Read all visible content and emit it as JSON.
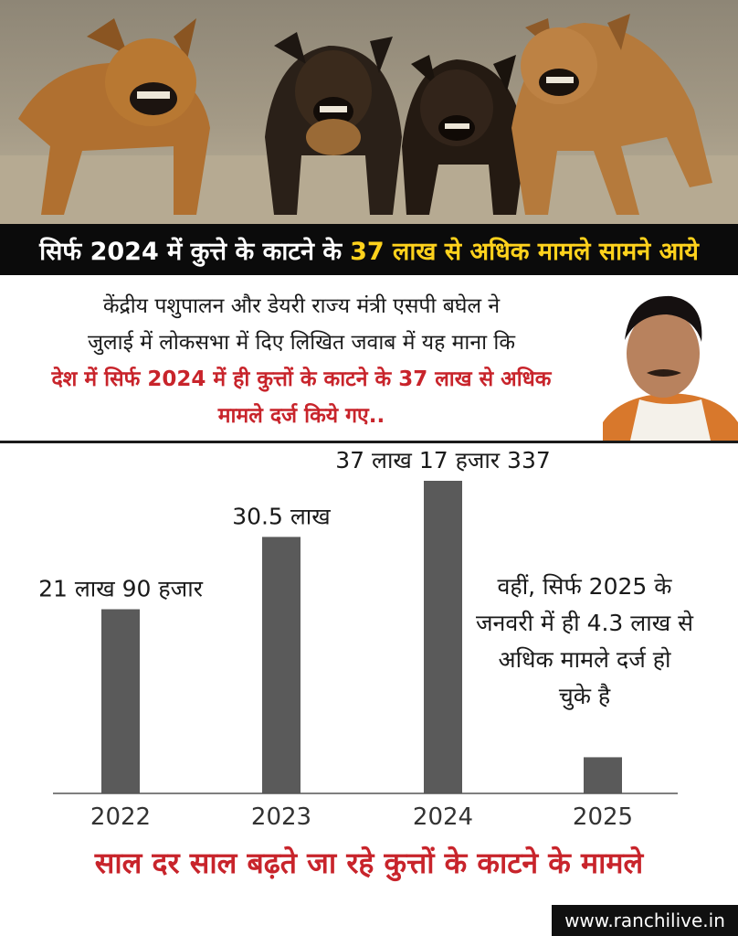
{
  "headline": {
    "white": "सिर्फ 2024 में कुत्ते के काटने के",
    "yellow": "37 लाख से अधिक मामले सामने आये"
  },
  "quote": {
    "line1": "केंद्रीय पशुपालन और डेयरी राज्य मंत्री एसपी बघेल ने",
    "line2": "जुलाई में लोकसभा में दिए लिखित जवाब में यह माना कि",
    "line3": "देश में सिर्फ 2024 में ही कुत्तों के काटने के 37 लाख से अधिक",
    "line4": "मामले दर्ज किये गए.."
  },
  "chart_data": {
    "type": "bar",
    "categories": [
      "2022",
      "2023",
      "2024",
      "2025"
    ],
    "values": [
      2190000,
      3050000,
      3717337,
      430000
    ],
    "data_labels": [
      "21 लाख 90 हजार",
      "30.5 लाख",
      "37 लाख 17 हजार 337",
      ""
    ],
    "title": "साल दर साल बढ़ते जा रहे कुत्तों के काटने के मामले",
    "ylim": [
      0,
      4000000
    ],
    "grid": false,
    "bar_color": "#5a5a5a"
  },
  "note": {
    "line1": "वहीं, सिर्फ 2025 के",
    "line2": "जनवरी में ही 4.3 लाख से",
    "line3": "अधिक मामले दर्ज हो",
    "line4": "चुके है"
  },
  "footer": {
    "site": "www.ranchilive.in"
  },
  "colors": {
    "accent_red": "#c8242b",
    "accent_yellow": "#ffd21c",
    "band_black": "#0b0b0b"
  }
}
